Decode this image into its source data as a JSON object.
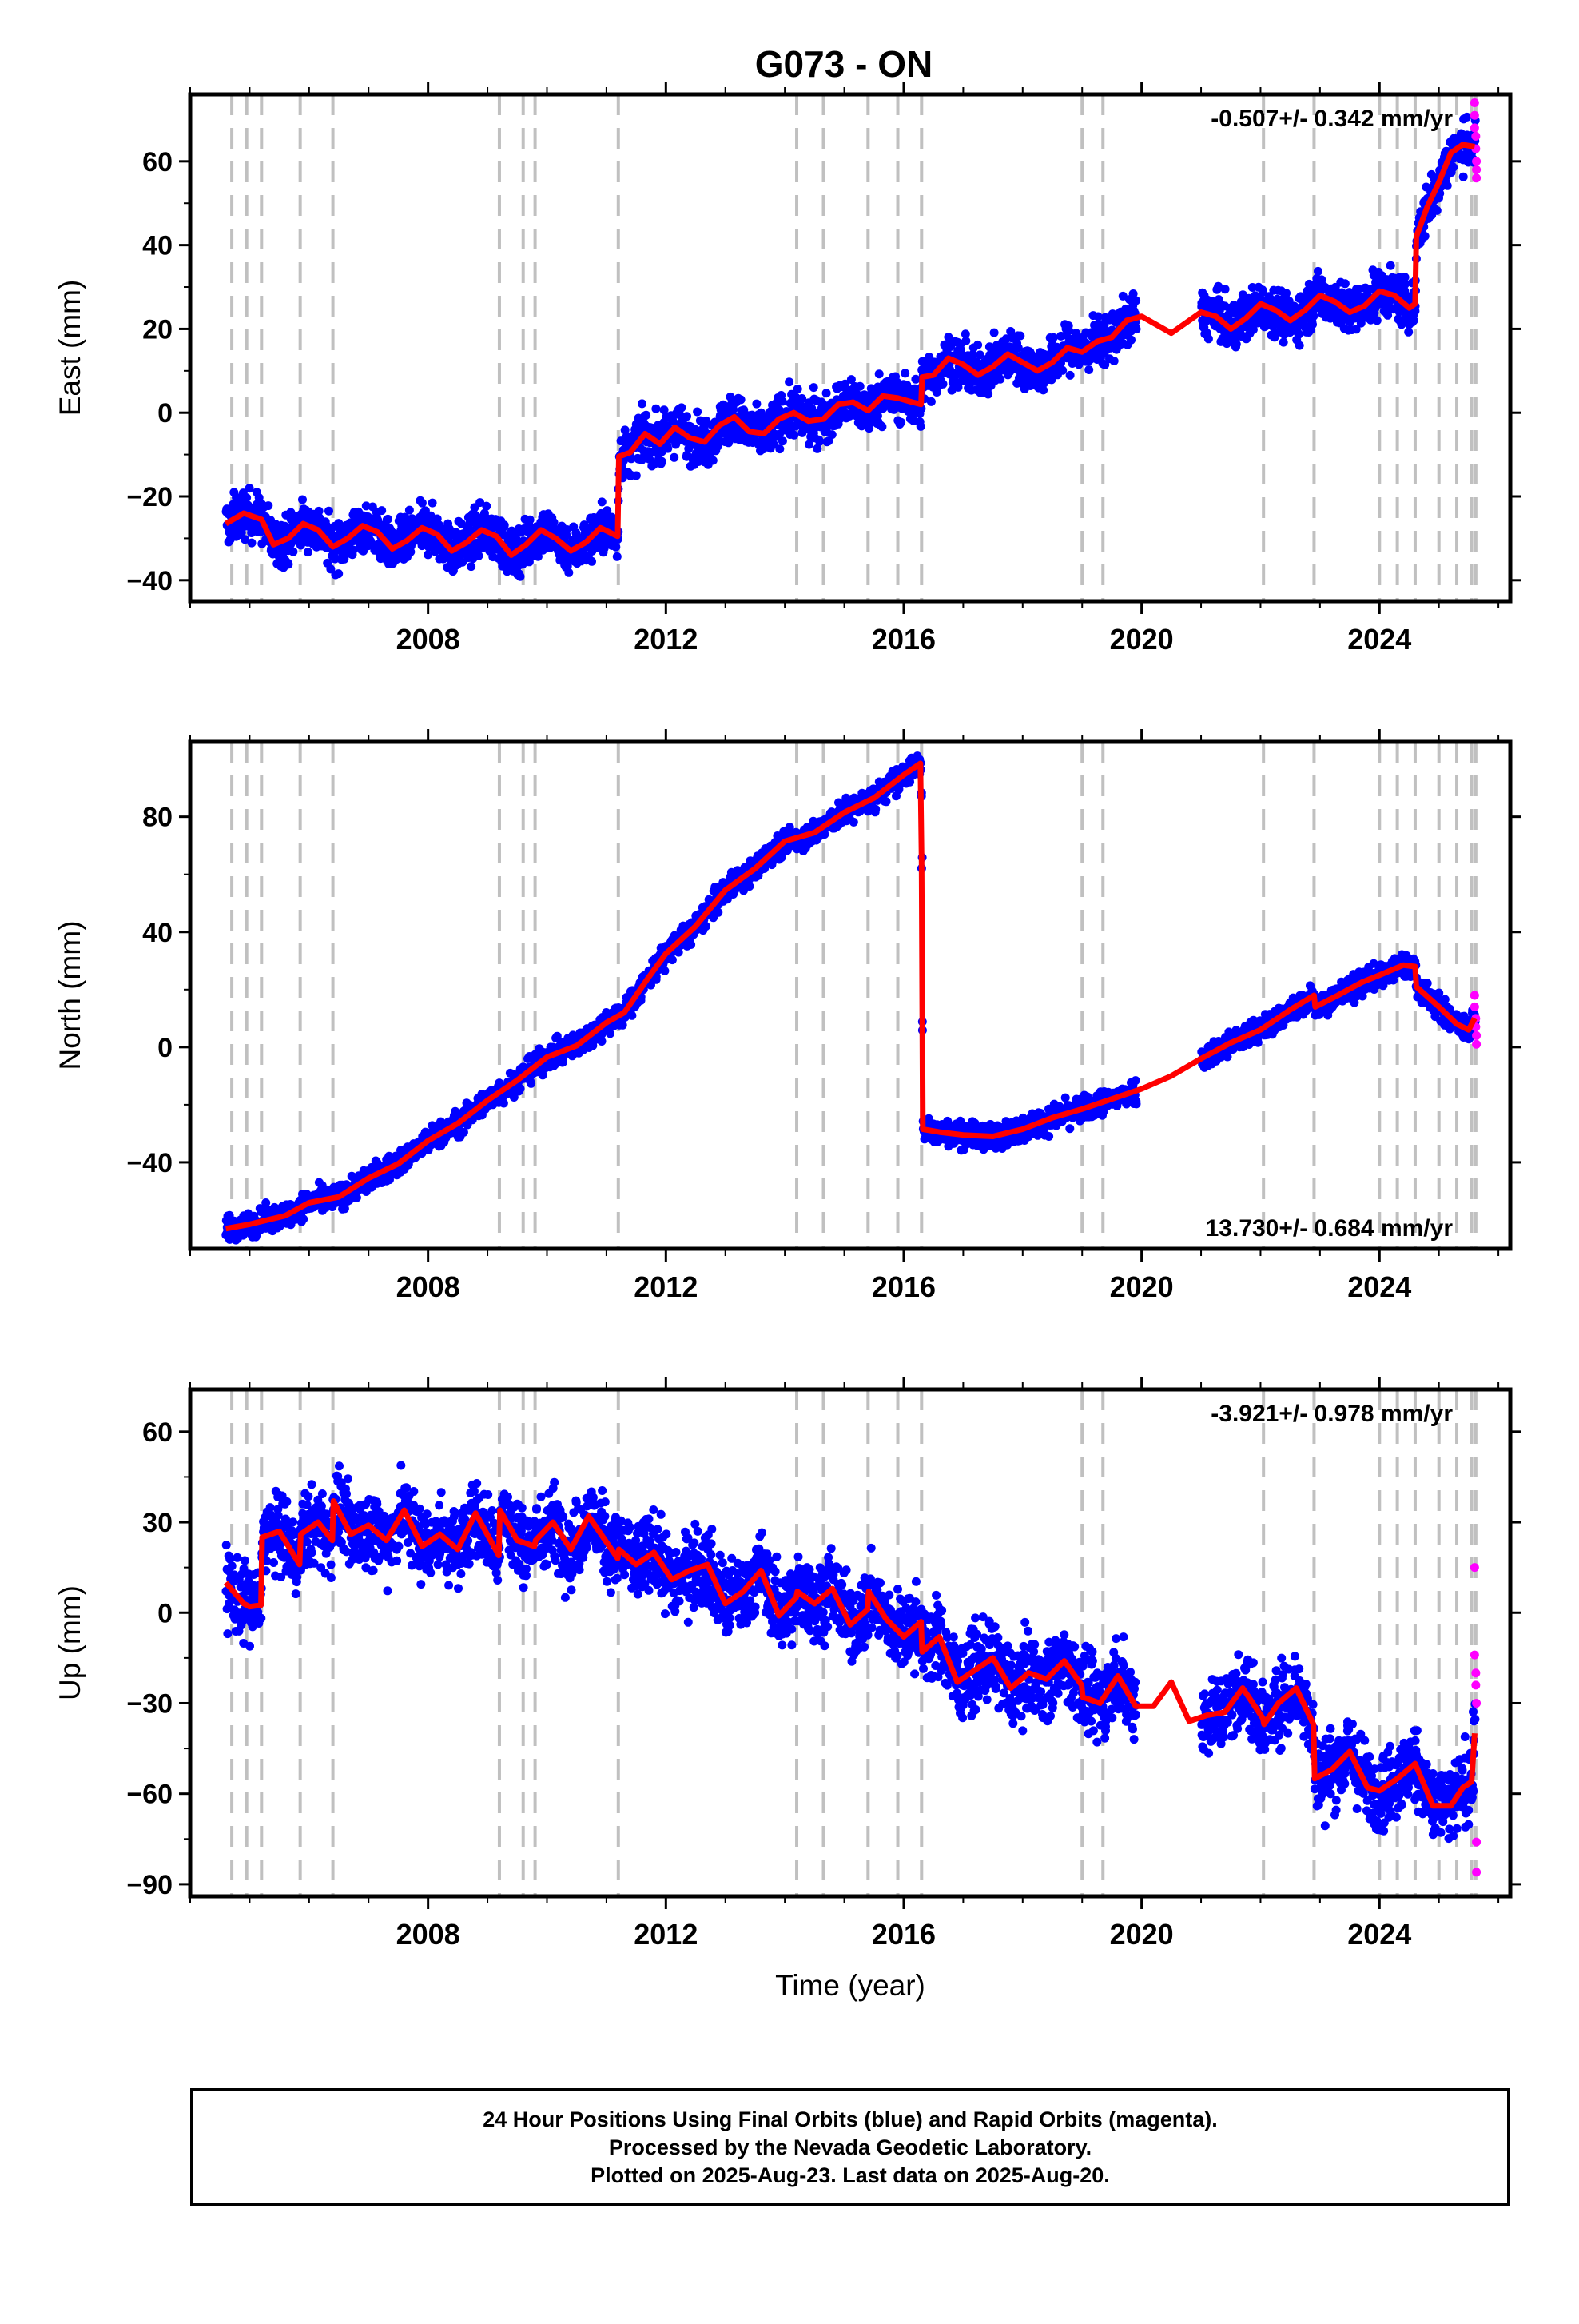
{
  "title": "G073 - ON",
  "footer": {
    "line1": "24 Hour Positions Using Final Orbits (blue) and Rapid Orbits (magenta).",
    "line2": "Processed by the Nevada Geodetic Laboratory.",
    "line3": "Plotted on 2025-Aug-23. Last data on 2025-Aug-20."
  },
  "colors": {
    "final_orbits": "#0000ff",
    "rapid_orbits": "#ff00ff",
    "model": "#ff0000",
    "event_lines": "#c0c0c0"
  },
  "chart_data": [
    {
      "type": "scatter",
      "panel": "east",
      "ylabel": "East (mm)",
      "xlabel": "",
      "xlim": [
        2004.0,
        2026.2
      ],
      "ylim": [
        -45,
        76
      ],
      "yticks": [
        -40,
        -20,
        0,
        20,
        40,
        60
      ],
      "xticks": [
        2008,
        2012,
        2016,
        2020,
        2024
      ],
      "rate_text": "-0.507+/- 0.342 mm/yr",
      "rate_position": "top-right",
      "event_lines": [
        2004.7,
        2004.95,
        2005.2,
        2005.85,
        2006.4,
        2009.2,
        2009.6,
        2009.8,
        2011.2,
        2014.2,
        2014.65,
        2015.4,
        2015.9,
        2016.3,
        2019.0,
        2019.35,
        2022.05,
        2022.9,
        2024.0,
        2024.3,
        2024.6,
        2025.0,
        2025.3,
        2025.55,
        2025.62
      ],
      "model_series": {
        "name": "",
        "x": [
          2004.6,
          2004.9,
          2005.2,
          2005.4,
          2005.65,
          2005.9,
          2006.15,
          2006.4,
          2006.65,
          2006.9,
          2007.15,
          2007.4,
          2007.65,
          2007.9,
          2008.15,
          2008.4,
          2008.65,
          2008.9,
          2009.15,
          2009.4,
          2009.65,
          2009.9,
          2010.15,
          2010.4,
          2010.65,
          2010.9,
          2011.19,
          2011.21,
          2011.4,
          2011.65,
          2011.9,
          2012.15,
          2012.4,
          2012.65,
          2012.9,
          2013.15,
          2013.4,
          2013.65,
          2013.9,
          2014.15,
          2014.4,
          2014.65,
          2014.9,
          2015.15,
          2015.4,
          2015.65,
          2015.9,
          2016.15,
          2016.29,
          2016.31,
          2016.5,
          2016.75,
          2017.0,
          2017.25,
          2017.5,
          2017.75,
          2018.0,
          2018.25,
          2018.5,
          2018.75,
          2019.0,
          2019.25,
          2019.5,
          2019.75,
          2020.0,
          2020.25,
          2020.5,
          2020.75,
          2021.0,
          2021.25,
          2021.5,
          2021.75,
          2022.0,
          2022.25,
          2022.5,
          2022.75,
          2023.0,
          2023.25,
          2023.5,
          2023.75,
          2024.0,
          2024.25,
          2024.5,
          2024.6,
          2024.62,
          2024.8,
          2025.0,
          2025.2,
          2025.4,
          2025.6
        ],
        "y": [
          -26.5,
          -24.0,
          -25.5,
          -31.5,
          -30.0,
          -26.5,
          -28.0,
          -32.0,
          -30.0,
          -27.0,
          -28.5,
          -32.5,
          -30.5,
          -27.5,
          -29.0,
          -33.0,
          -31.0,
          -28.0,
          -29.5,
          -34.0,
          -31.5,
          -28.0,
          -30.0,
          -33.0,
          -31.0,
          -27.5,
          -29.5,
          -10.5,
          -9.5,
          -5.0,
          -7.5,
          -3.5,
          -6.0,
          -7.0,
          -3.0,
          -1.0,
          -4.5,
          -5.0,
          -1.5,
          0.0,
          -2.0,
          -1.5,
          2.0,
          2.5,
          0.5,
          4.0,
          3.5,
          2.5,
          2.0,
          8.5,
          9.0,
          13.0,
          11.5,
          9.0,
          11.0,
          14.0,
          12.0,
          10.0,
          12.0,
          15.5,
          14.5,
          17.0,
          18.0,
          22.0,
          23.0,
          21.0,
          19.0,
          21.5,
          24.0,
          23.0,
          20.0,
          22.5,
          26.0,
          24.5,
          22.0,
          24.5,
          28.0,
          26.5,
          24.0,
          25.5,
          29.0,
          28.0,
          25.0,
          26.0,
          42.0,
          49.0,
          55.0,
          62.0,
          64.0,
          63.5
        ]
      },
      "observation_envelope": {
        "spread_mm": 4,
        "gap": [
          2019.9,
          2021.0
        ],
        "rapid_x": [
          2025.6,
          2025.6,
          2025.6,
          2025.62,
          2025.62,
          2025.63,
          2025.63,
          2025.63
        ],
        "rapid_y": [
          74.0,
          71.0,
          68.0,
          66.0,
          63.0,
          60.0,
          58.0,
          56.0
        ]
      }
    },
    {
      "type": "scatter",
      "panel": "north",
      "ylabel": "North (mm)",
      "xlabel": "",
      "xlim": [
        2004.0,
        2026.2
      ],
      "ylim": [
        -70,
        106
      ],
      "yticks": [
        -40,
        0,
        40,
        80
      ],
      "xticks": [
        2008,
        2012,
        2016,
        2020,
        2024
      ],
      "rate_text": "13.730+/- 0.684 mm/yr",
      "rate_position": "bottom-right",
      "event_lines": [
        2004.7,
        2004.95,
        2005.2,
        2005.85,
        2006.4,
        2009.2,
        2009.6,
        2009.8,
        2011.2,
        2014.2,
        2014.65,
        2015.4,
        2015.9,
        2016.3,
        2019.0,
        2019.35,
        2022.05,
        2022.9,
        2024.0,
        2024.3,
        2024.6,
        2025.0,
        2025.3,
        2025.55,
        2025.62
      ],
      "model_series": {
        "name": "",
        "x": [
          2004.6,
          2005.0,
          2005.3,
          2005.6,
          2006.0,
          2006.5,
          2007.0,
          2007.5,
          2008.0,
          2008.5,
          2009.0,
          2009.5,
          2010.0,
          2010.5,
          2011.0,
          2011.3,
          2011.7,
          2012.0,
          2012.5,
          2013.0,
          2013.5,
          2014.0,
          2014.5,
          2015.0,
          2015.5,
          2016.0,
          2016.28,
          2016.3,
          2016.32,
          2016.6,
          2017.0,
          2017.5,
          2018.0,
          2018.5,
          2019.0,
          2019.5,
          2020.0,
          2020.5,
          2021.0,
          2021.5,
          2022.0,
          2022.5,
          2022.9,
          2022.92,
          2023.3,
          2023.7,
          2024.0,
          2024.4,
          2024.6,
          2024.62,
          2025.0,
          2025.3,
          2025.5,
          2025.6
        ],
        "y": [
          -63.0,
          -61.5,
          -60.0,
          -58.5,
          -54.0,
          -52.0,
          -45.5,
          -40.5,
          -32.5,
          -26.5,
          -18.5,
          -11.5,
          -3.5,
          0.5,
          8.5,
          12.0,
          24.0,
          32.5,
          42.0,
          54.5,
          62.0,
          71.5,
          74.5,
          81.5,
          86.5,
          94.5,
          98.5,
          65.0,
          -28.5,
          -29.5,
          -30.5,
          -31.0,
          -28.5,
          -24.5,
          -21.5,
          -18.0,
          -14.5,
          -10.0,
          -4.0,
          1.5,
          6.0,
          13.0,
          18.0,
          14.0,
          18.0,
          22.5,
          25.0,
          28.5,
          28.0,
          21.0,
          14.0,
          8.0,
          6.0,
          10.0
        ]
      },
      "observation_envelope": {
        "spread_mm": 3,
        "gap": [
          2019.9,
          2021.0
        ],
        "rapid_x": [
          2025.6,
          2025.6,
          2025.62,
          2025.62,
          2025.63,
          2025.63
        ],
        "rapid_y": [
          18.0,
          14.0,
          10.0,
          7.0,
          4.0,
          1.0
        ]
      }
    },
    {
      "type": "scatter",
      "panel": "up",
      "ylabel": "Up (mm)",
      "xlabel": "Time (year)",
      "xlim": [
        2004.0,
        2026.2
      ],
      "ylim": [
        -94,
        74
      ],
      "yticks": [
        -90,
        -60,
        -30,
        0,
        30,
        60
      ],
      "xticks": [
        2008,
        2012,
        2016,
        2020,
        2024
      ],
      "rate_text": "-3.921+/- 0.978 mm/yr",
      "rate_position": "top-right",
      "event_lines": [
        2004.7,
        2004.95,
        2005.2,
        2005.85,
        2006.4,
        2009.2,
        2009.6,
        2009.8,
        2011.2,
        2014.2,
        2014.65,
        2015.4,
        2015.9,
        2016.3,
        2019.0,
        2019.35,
        2022.05,
        2022.9,
        2024.0,
        2024.3,
        2024.6,
        2025.0,
        2025.3,
        2025.55,
        2025.62
      ],
      "model_series": {
        "name": "",
        "x": [
          2004.6,
          2004.9,
          2005.0,
          2005.19,
          2005.21,
          2005.5,
          2005.84,
          2005.86,
          2006.15,
          2006.39,
          2006.41,
          2006.7,
          2007.0,
          2007.3,
          2007.6,
          2007.9,
          2008.2,
          2008.5,
          2008.8,
          2009.19,
          2009.21,
          2009.5,
          2009.79,
          2009.81,
          2010.1,
          2010.4,
          2010.7,
          2011.19,
          2011.21,
          2011.5,
          2011.8,
          2012.1,
          2012.4,
          2012.7,
          2013.0,
          2013.3,
          2013.6,
          2013.9,
          2014.19,
          2014.21,
          2014.5,
          2014.8,
          2015.1,
          2015.39,
          2015.41,
          2015.7,
          2016.0,
          2016.29,
          2016.31,
          2016.6,
          2016.9,
          2017.2,
          2017.5,
          2017.8,
          2018.1,
          2018.4,
          2018.7,
          2018.99,
          2019.01,
          2019.3,
          2019.6,
          2019.9,
          2020.2,
          2020.5,
          2020.8,
          2021.1,
          2021.4,
          2021.7,
          2022.04,
          2022.06,
          2022.3,
          2022.6,
          2022.89,
          2022.91,
          2023.2,
          2023.5,
          2023.8,
          2024.0,
          2024.3,
          2024.6,
          2024.9,
          2025.2,
          2025.4,
          2025.55,
          2025.6
        ],
        "y": [
          10.0,
          3.0,
          2.0,
          2.5,
          25.0,
          27.0,
          16.0,
          26.0,
          30.0,
          24.0,
          37.0,
          26.0,
          29.0,
          24.0,
          34.0,
          22.0,
          26.0,
          21.0,
          33.0,
          19.0,
          34.0,
          24.0,
          22.0,
          24.0,
          30.0,
          21.0,
          32.0,
          18.0,
          21.0,
          16.0,
          20.0,
          11.0,
          14.0,
          16.0,
          3.0,
          7.0,
          14.0,
          -1.0,
          5.0,
          7.0,
          3.0,
          8.0,
          -4.0,
          1.0,
          7.0,
          -2.0,
          -8.0,
          -3.0,
          -13.0,
          -8.0,
          -23.0,
          -19.0,
          -15.0,
          -25.0,
          -20.0,
          -22.0,
          -16.0,
          -24.0,
          -28.0,
          -30.0,
          -21.0,
          -31.0,
          -31.0,
          -23.0,
          -36.0,
          -34.0,
          -33.0,
          -25.0,
          -35.0,
          -37.0,
          -30.0,
          -25.0,
          -37.0,
          -55.0,
          -52.0,
          -46.0,
          -58.0,
          -59.0,
          -55.0,
          -50.0,
          -64.0,
          -64.0,
          -58.0,
          -56.0,
          -40.0
        ]
      },
      "observation_envelope": {
        "spread_mm": 9,
        "gap": [
          2019.9,
          2021.0
        ],
        "rapid_x": [
          2025.6,
          2025.6,
          2025.62,
          2025.62,
          2025.63,
          2025.63,
          2025.63
        ],
        "rapid_y": [
          15.0,
          -14.0,
          -20.0,
          -24.0,
          -30.0,
          -76.0,
          -86.0
        ]
      }
    }
  ]
}
